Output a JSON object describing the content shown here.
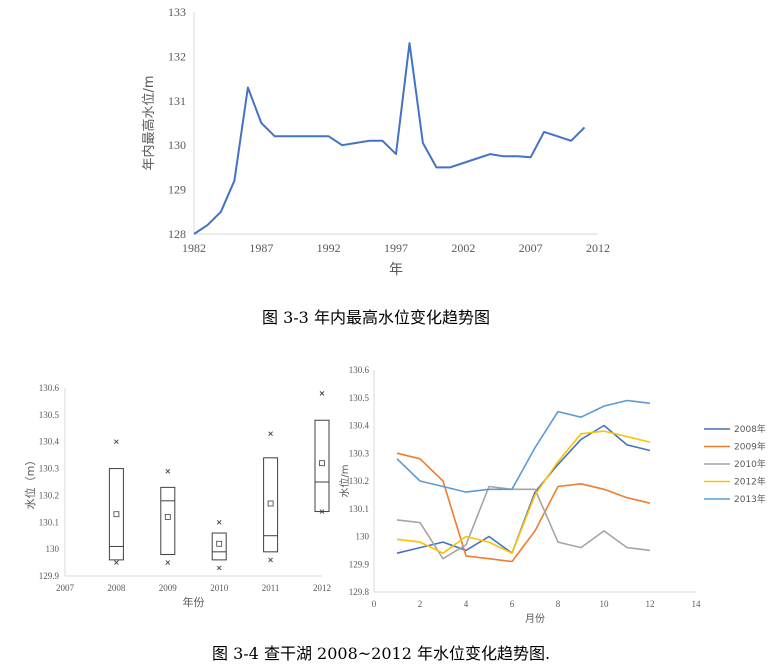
{
  "captions": {
    "fig1": "图 3-3 年内最高水位变化趋势图",
    "fig2": "图 3-4 查干湖 2008~2012 年水位变化趋势图."
  },
  "chart_data": [
    {
      "type": "line",
      "title": "",
      "xlabel": "年",
      "ylabel": "年内最高水位/m",
      "xlim": [
        1982,
        2012
      ],
      "ylim": [
        128,
        133
      ],
      "x_ticks": [
        1982,
        1987,
        1992,
        1997,
        2002,
        2007,
        2012
      ],
      "y_ticks": [
        128,
        129,
        130,
        131,
        132,
        133
      ],
      "grid": false,
      "color": "#4472C4",
      "x": [
        1982,
        1983,
        1984,
        1985,
        1986,
        1987,
        1988,
        1989,
        1990,
        1991,
        1992,
        1993,
        1994,
        1995,
        1996,
        1997,
        1998,
        1999,
        2000,
        2001,
        2002,
        2003,
        2004,
        2005,
        2006,
        2007,
        2008,
        2009,
        2010,
        2011
      ],
      "y": [
        128.0,
        128.2,
        128.5,
        129.2,
        131.3,
        130.5,
        130.2,
        130.2,
        130.2,
        130.2,
        130.2,
        130.0,
        130.05,
        130.1,
        130.1,
        129.8,
        132.3,
        130.05,
        129.5,
        129.5,
        129.6,
        129.7,
        129.8,
        129.75,
        129.75,
        129.73,
        130.3,
        130.2,
        130.1,
        130.4
      ]
    },
    {
      "type": "box",
      "title": "",
      "xlabel": "年份",
      "ylabel": "水位（m）",
      "xlim": [
        2007,
        2012
      ],
      "ylim": [
        129.9,
        130.6
      ],
      "x_ticks": [
        "2007",
        "2008",
        "2009",
        "2010",
        "2011",
        "2012"
      ],
      "y_ticks": [
        "129.9",
        "130",
        "130.1",
        "130.2",
        "130.3",
        "130.4",
        "130.5",
        "130.6"
      ],
      "grid": false,
      "boxes": [
        {
          "category": "2008",
          "min": 129.96,
          "q1": 129.96,
          "median": 130.01,
          "q3": 130.3,
          "max": 130.3,
          "mean": 130.13,
          "outlier_high": 130.4,
          "outlier_low": 129.95
        },
        {
          "category": "2009",
          "min": 129.98,
          "q1": 129.98,
          "median": 130.18,
          "q3": 130.23,
          "max": 130.23,
          "mean": 130.12,
          "outlier_high": 130.29,
          "outlier_low": 129.95
        },
        {
          "category": "2010",
          "min": 129.96,
          "q1": 129.96,
          "median": 129.99,
          "q3": 130.06,
          "max": 130.06,
          "mean": 130.02,
          "outlier_high": 130.1,
          "outlier_low": 129.93
        },
        {
          "category": "2011",
          "min": 129.99,
          "q1": 129.99,
          "median": 130.05,
          "q3": 130.34,
          "max": 130.34,
          "mean": 130.17,
          "outlier_high": 130.43,
          "outlier_low": 129.96
        },
        {
          "category": "2012",
          "min": 130.14,
          "q1": 130.14,
          "median": 130.25,
          "q3": 130.48,
          "max": 130.48,
          "mean": 130.32,
          "outlier_high": 130.58,
          "outlier_low": 130.14
        }
      ]
    },
    {
      "type": "line",
      "title": "",
      "xlabel": "月份",
      "ylabel": "水位/m",
      "xlim": [
        0,
        14
      ],
      "ylim": [
        129.8,
        130.6
      ],
      "x_ticks": [
        0,
        2,
        4,
        6,
        8,
        10,
        12,
        14
      ],
      "y_ticks": [
        "129.8",
        "129.9",
        "130",
        "130.1",
        "130.2",
        "130.3",
        "130.4",
        "130.5",
        "130.6"
      ],
      "grid": false,
      "legend": "right",
      "x": [
        1,
        2,
        3,
        4,
        5,
        6,
        7,
        8,
        9,
        10,
        11,
        12
      ],
      "series": [
        {
          "name": "2008年",
          "color": "#4472C4",
          "values": [
            129.94,
            129.96,
            129.98,
            129.95,
            130.0,
            129.94,
            130.16,
            130.26,
            130.35,
            130.4,
            130.33,
            130.31
          ]
        },
        {
          "name": "2009年",
          "color": "#ED7D31",
          "values": [
            130.3,
            130.28,
            130.2,
            129.93,
            129.92,
            129.91,
            130.02,
            130.18,
            130.19,
            130.17,
            130.14,
            130.12
          ]
        },
        {
          "name": "2010年",
          "color": "#A5A5A5",
          "values": [
            130.06,
            130.05,
            129.92,
            129.97,
            130.18,
            130.17,
            130.17,
            129.98,
            129.96,
            130.02,
            129.96,
            129.95
          ]
        },
        {
          "name": "2012年",
          "color": "#FFC000",
          "values": [
            129.99,
            129.98,
            129.94,
            130.0,
            129.98,
            129.94,
            130.15,
            130.27,
            130.37,
            130.38,
            130.36,
            130.34
          ]
        },
        {
          "name": "2013年",
          "color": "#5B9BD5",
          "values": [
            130.28,
            130.2,
            130.18,
            130.16,
            130.17,
            130.17,
            130.32,
            130.45,
            130.43,
            130.47,
            130.49,
            130.48
          ]
        }
      ]
    }
  ]
}
